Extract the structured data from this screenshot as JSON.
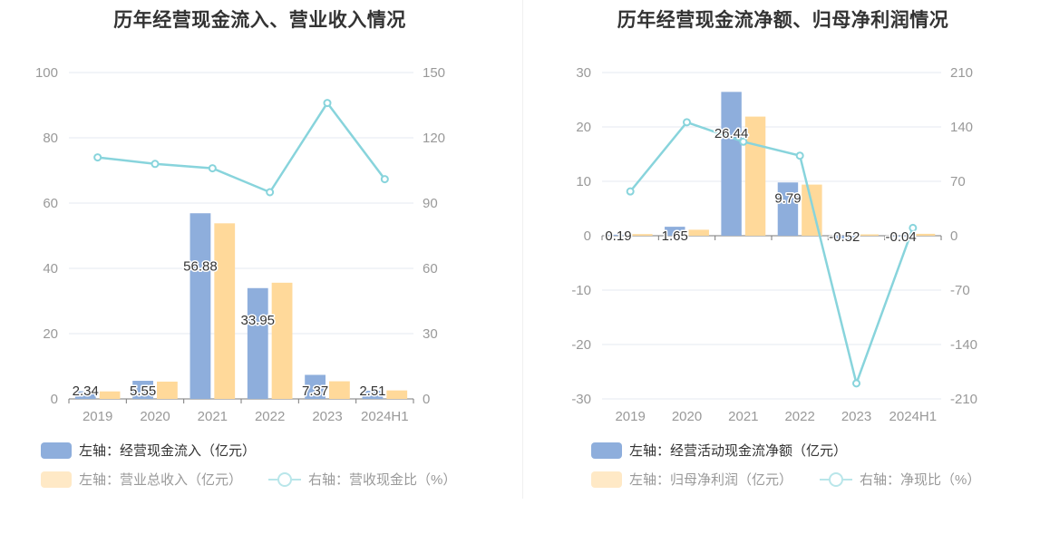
{
  "colors": {
    "bar1": "#8eaedc",
    "bar2": "#ffd99a",
    "line": "#88d4dc",
    "grid": "#e6e9f2",
    "axis": "#999999",
    "label": "#333333"
  },
  "chart_data": [
    {
      "type": "bar",
      "title": "历年经营现金流入、营业收入情况",
      "categories": [
        "2019",
        "2020",
        "2021",
        "2022",
        "2023",
        "2024H1"
      ],
      "left_axis": {
        "min": 0,
        "max": 100,
        "ticks": [
          0,
          20,
          40,
          60,
          80,
          100
        ]
      },
      "right_axis": {
        "min": 0,
        "max": 150,
        "ticks": [
          0,
          30,
          60,
          90,
          120,
          150
        ]
      },
      "series": [
        {
          "name": "左轴：经营现金流入（亿元）",
          "axis": "left",
          "kind": "bar",
          "values": [
            2.34,
            5.55,
            56.88,
            33.95,
            7.37,
            2.51
          ],
          "labels": [
            "2.34",
            "5.55",
            "56.88",
            "33.95",
            "7.37",
            "2.51"
          ]
        },
        {
          "name": "左轴：营业总收入（亿元）",
          "axis": "left",
          "kind": "bar",
          "values": [
            2.3,
            5.3,
            53.8,
            35.6,
            5.4,
            2.6
          ]
        },
        {
          "name": "右轴：营收现金比（%）",
          "axis": "right",
          "kind": "line",
          "values": [
            111,
            108,
            106,
            95,
            136,
            101
          ]
        }
      ]
    },
    {
      "type": "bar",
      "title": "历年经营现金流净额、归母净利润情况",
      "categories": [
        "2019",
        "2020",
        "2021",
        "2022",
        "2023",
        "2024H1"
      ],
      "left_axis": {
        "min": -30,
        "max": 30,
        "ticks": [
          -30,
          -20,
          -10,
          0,
          10,
          20,
          30
        ]
      },
      "right_axis": {
        "min": -210,
        "max": 210,
        "ticks": [
          -210,
          -140,
          -70,
          0,
          70,
          140,
          210
        ]
      },
      "series": [
        {
          "name": "左轴：经营活动现金流净额（亿元）",
          "axis": "left",
          "kind": "bar",
          "values": [
            0.19,
            1.65,
            26.44,
            9.79,
            -0.52,
            -0.04
          ],
          "labels": [
            "0.19",
            "1.65",
            "26.44",
            "9.79",
            "-0.52",
            "-0.04"
          ]
        },
        {
          "name": "左轴：归母净利润（亿元）",
          "axis": "left",
          "kind": "bar",
          "values": [
            0.3,
            1.1,
            21.9,
            9.4,
            0.25,
            0.35
          ]
        },
        {
          "name": "右轴：净现比（%）",
          "axis": "right",
          "kind": "line",
          "values": [
            57,
            146,
            121,
            103,
            -190,
            10
          ]
        }
      ]
    }
  ]
}
